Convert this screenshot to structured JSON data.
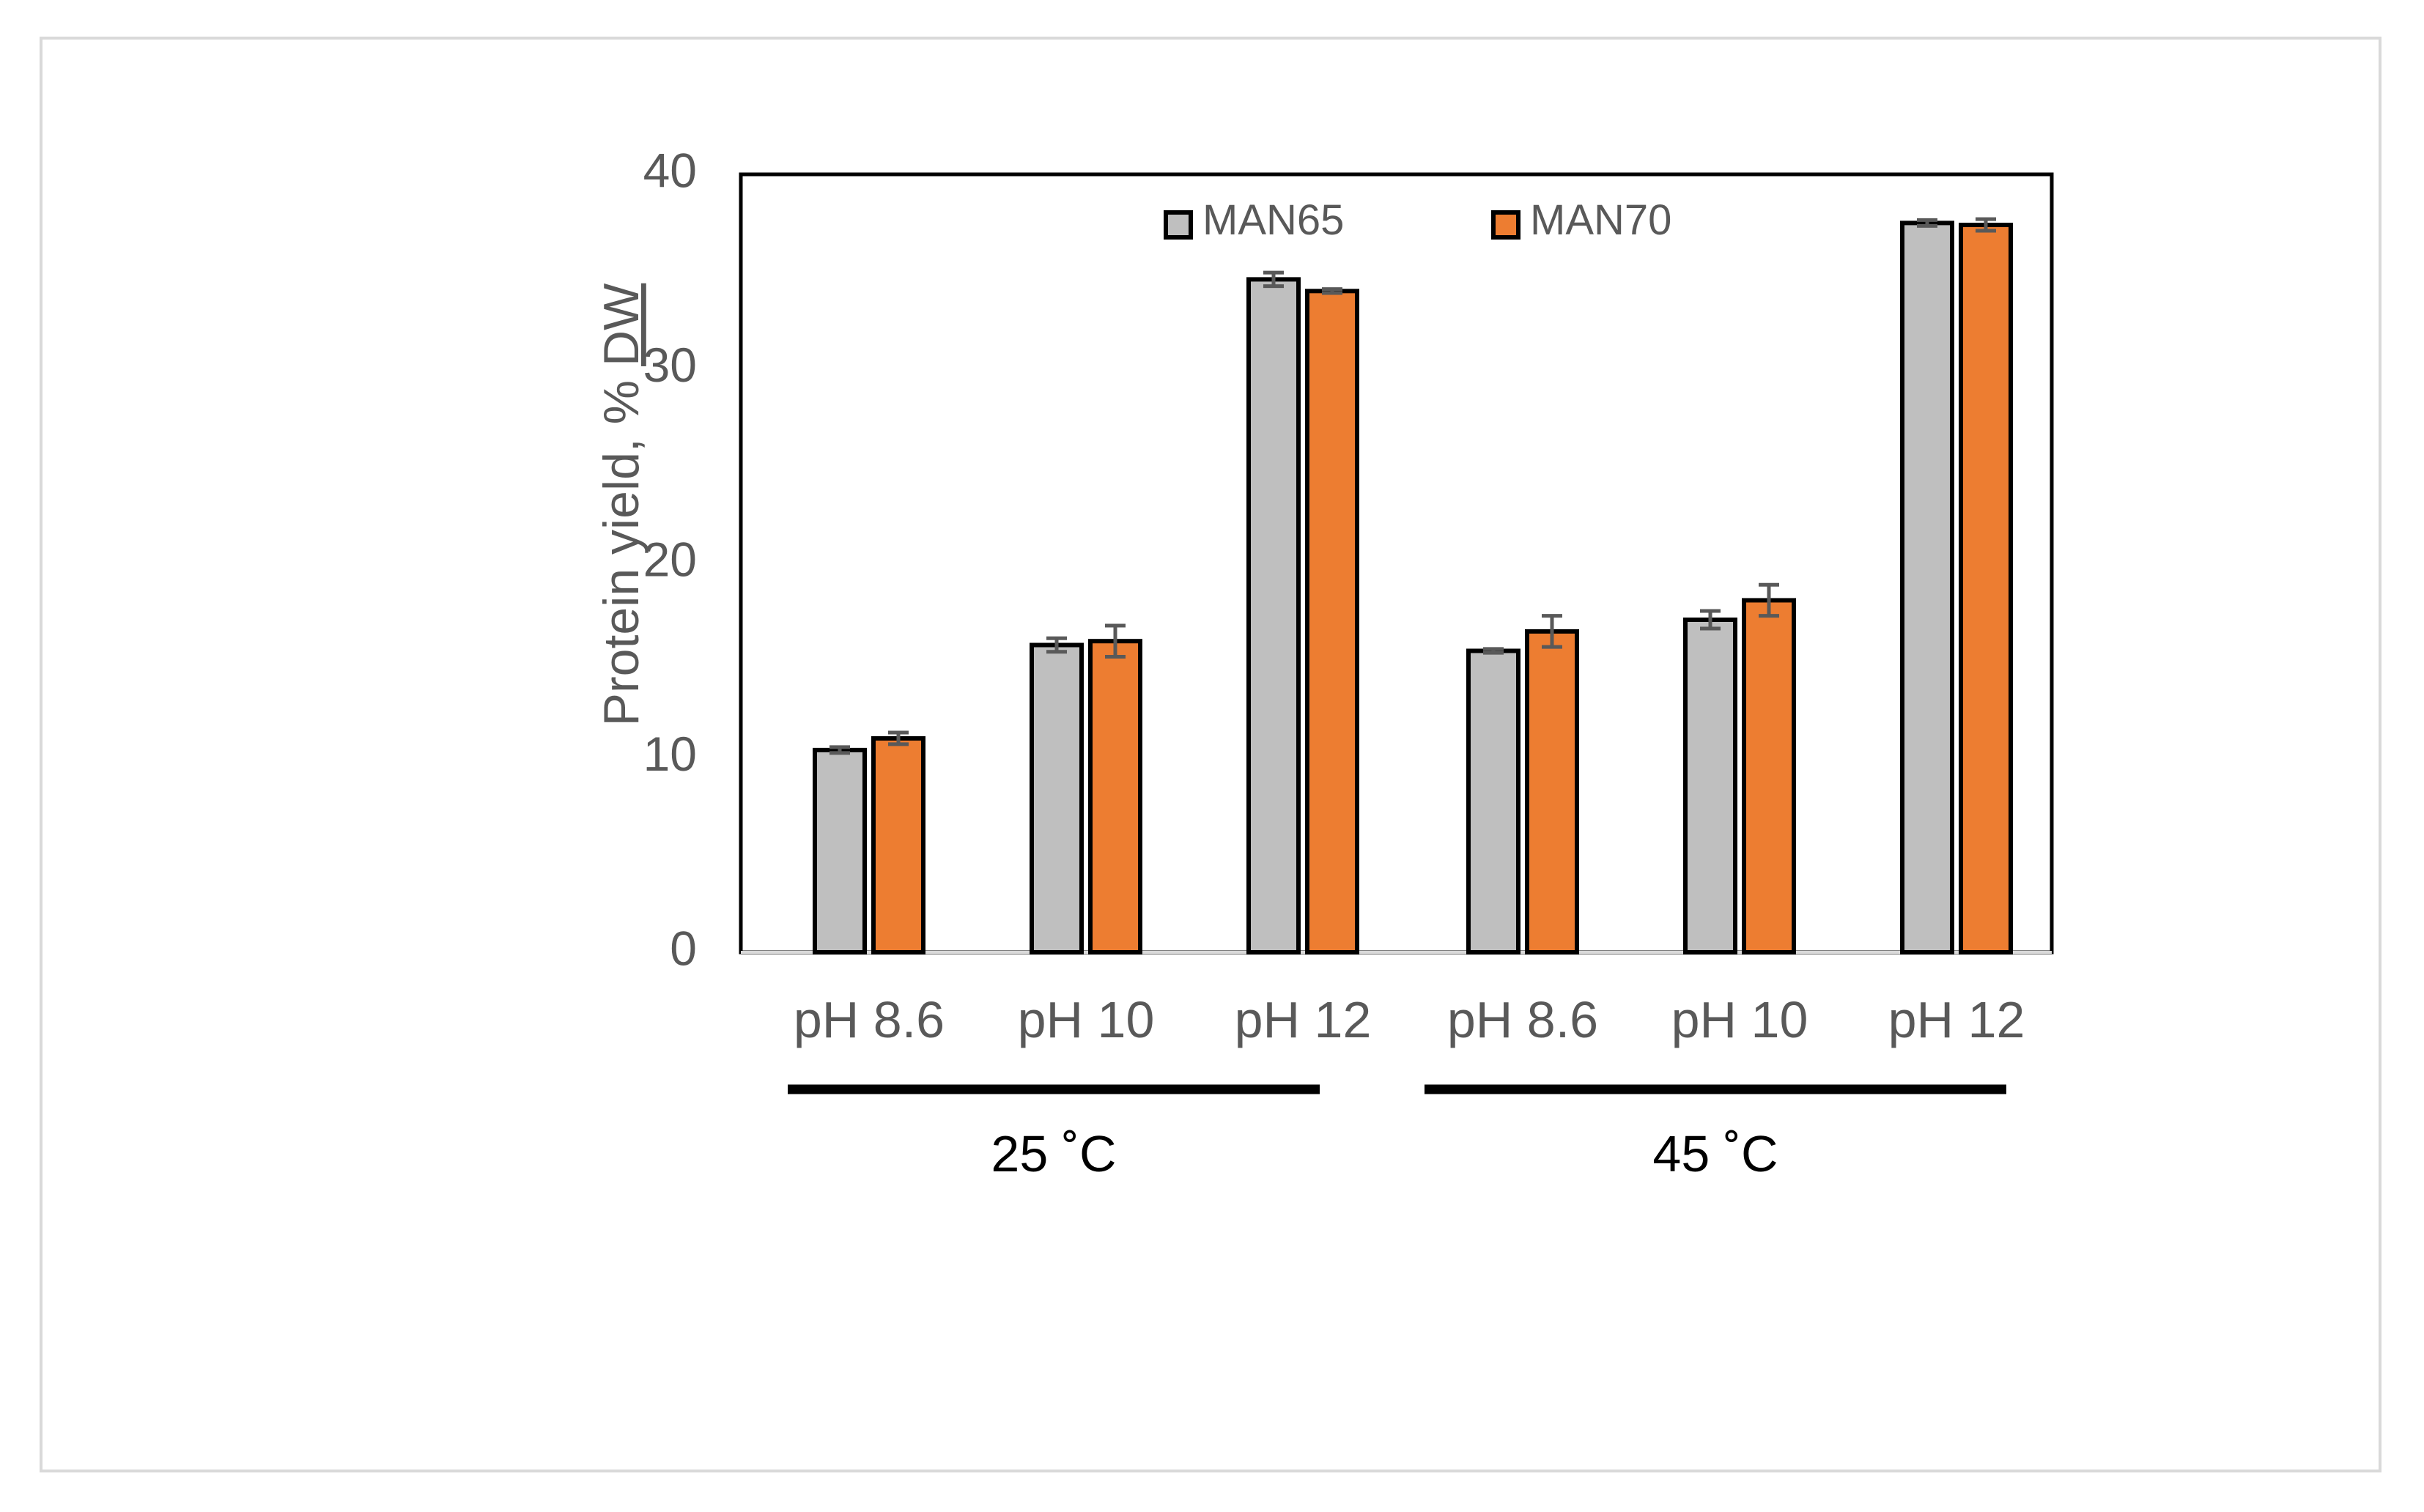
{
  "chart_data": {
    "type": "bar",
    "title": "",
    "ylabel": "Protein yield, % DW",
    "ylabel_main": "Protein yield, % ",
    "ylabel_underlined": "DW",
    "ylim": [
      0,
      40
    ],
    "yticks": [
      "0",
      "10",
      "20",
      "30",
      "40"
    ],
    "categories": [
      "pH 8.6",
      "pH 10",
      "pH 12",
      "pH 8.6",
      "pH 10",
      "pH 12"
    ],
    "groups": [
      {
        "label": "25 ˚C",
        "categories": [
          0,
          1,
          2
        ]
      },
      {
        "label": "45 ˚C",
        "categories": [
          3,
          4,
          5
        ]
      }
    ],
    "series": [
      {
        "name": "MAN65",
        "color": "#bfbfbf",
        "values": [
          10.4,
          15.8,
          34.6,
          15.5,
          17.1,
          37.5
        ],
        "errors": [
          0.15,
          0.35,
          0.35,
          0.1,
          0.45,
          0.15
        ]
      },
      {
        "name": "MAN70",
        "color": "#ed7d31",
        "values": [
          11.0,
          16.0,
          34.0,
          16.5,
          18.1,
          37.4
        ],
        "errors": [
          0.3,
          0.8,
          0.1,
          0.8,
          0.8,
          0.3
        ]
      }
    ],
    "legend_position": "top"
  }
}
